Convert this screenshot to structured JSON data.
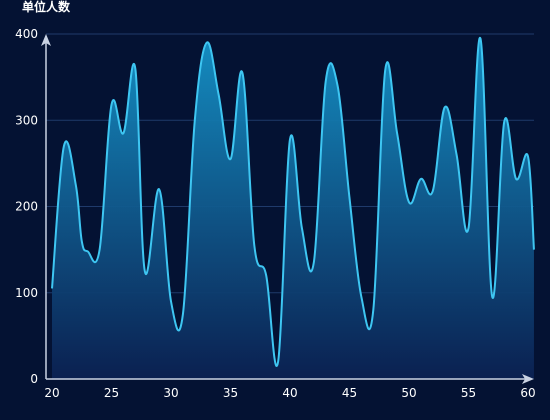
{
  "chart_data": {
    "type": "area",
    "title": "",
    "xlabel": "",
    "ylabel": "单位人数",
    "xlim": [
      20,
      60
    ],
    "ylim": [
      0,
      400
    ],
    "x_ticks": [
      20,
      25,
      30,
      35,
      40,
      45,
      50,
      55,
      60
    ],
    "y_ticks": [
      0,
      100,
      200,
      300,
      400
    ],
    "grid": "horizontal",
    "colors": {
      "line": "#3ec6f2",
      "fill_top": "#1593c8",
      "fill_bottom": "#0b2152",
      "grid": "#1f3a6b",
      "axis": "#c9d2e3"
    },
    "series": [
      {
        "values": [
          [
            20,
            105
          ],
          [
            21,
            270
          ],
          [
            22,
            225
          ],
          [
            22.5,
            160
          ],
          [
            23,
            148
          ],
          [
            24,
            150
          ],
          [
            25,
            318
          ],
          [
            26,
            285
          ],
          [
            27,
            360
          ],
          [
            27.8,
            125
          ],
          [
            29,
            220
          ],
          [
            30,
            90
          ],
          [
            31,
            75
          ],
          [
            32,
            300
          ],
          [
            33,
            390
          ],
          [
            34,
            330
          ],
          [
            35,
            255
          ],
          [
            36,
            355
          ],
          [
            37,
            155
          ],
          [
            38,
            120
          ],
          [
            39,
            20
          ],
          [
            40,
            278
          ],
          [
            41,
            175
          ],
          [
            42,
            135
          ],
          [
            43,
            345
          ],
          [
            44,
            340
          ],
          [
            45,
            210
          ],
          [
            46,
            95
          ],
          [
            47,
            80
          ],
          [
            48,
            358
          ],
          [
            49,
            285
          ],
          [
            50,
            205
          ],
          [
            51,
            232
          ],
          [
            52,
            218
          ],
          [
            53,
            315
          ],
          [
            54,
            260
          ],
          [
            55,
            175
          ],
          [
            56,
            395
          ],
          [
            57,
            95
          ],
          [
            58,
            298
          ],
          [
            59,
            232
          ],
          [
            60,
            258
          ],
          [
            60.5,
            150
          ]
        ]
      }
    ]
  }
}
